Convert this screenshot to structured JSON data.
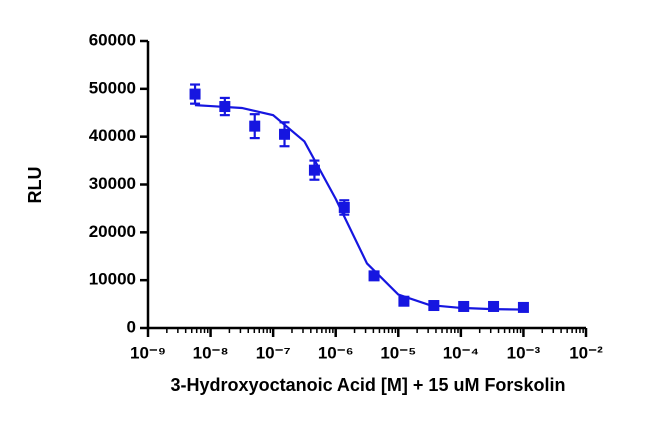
{
  "chart_data": {
    "type": "dose-response",
    "x_label": "3-Hydroxyoctanoic Acid [M] + 15 uM Forskolin",
    "y_label": "RLU",
    "x_scale": "log",
    "color": "#1616e0",
    "points": {
      "x": [
        5.65e-09,
        1.69e-08,
        5.08e-08,
        1.52e-07,
        4.57e-07,
        1.37e-06,
        4.1e-06,
        1.23e-05,
        3.7e-05,
        0.000111,
        0.000333,
        0.001
      ],
      "values": [
        48900,
        46300,
        42200,
        40500,
        33000,
        25200,
        10900,
        5600,
        4700,
        4500,
        4500,
        4300
      ],
      "errors": [
        2000,
        1800,
        2500,
        2500,
        2000,
        1500,
        600,
        400,
        300,
        300,
        300,
        300
      ]
    },
    "fit": {
      "x": [
        5.62e-09,
        1e-08,
        3.16e-08,
        1e-07,
        3.16e-07,
        1e-06,
        3.16e-06,
        1e-05,
        3.16e-05,
        0.0001,
        0.000316,
        0.001
      ],
      "values": [
        46600,
        46400,
        46000,
        44500,
        39000,
        27000,
        13500,
        7000,
        4800,
        4200,
        3950,
        3850
      ]
    },
    "xlim": [
      1e-09,
      0.01
    ],
    "xticks": [
      {
        "value": 1e-09,
        "label": "10⁻⁹"
      },
      {
        "value": 1e-08,
        "label": "10⁻⁸"
      },
      {
        "value": 1e-07,
        "label": "10⁻⁷"
      },
      {
        "value": 1e-06,
        "label": "10⁻⁶"
      },
      {
        "value": 1e-05,
        "label": "10⁻⁵"
      },
      {
        "value": 0.0001,
        "label": "10⁻⁴"
      },
      {
        "value": 0.001,
        "label": "10⁻³"
      },
      {
        "value": 0.01,
        "label": "10⁻²"
      }
    ],
    "ylim": [
      0,
      60000
    ],
    "yticks": [
      0,
      10000,
      20000,
      30000,
      40000,
      50000,
      60000
    ]
  }
}
